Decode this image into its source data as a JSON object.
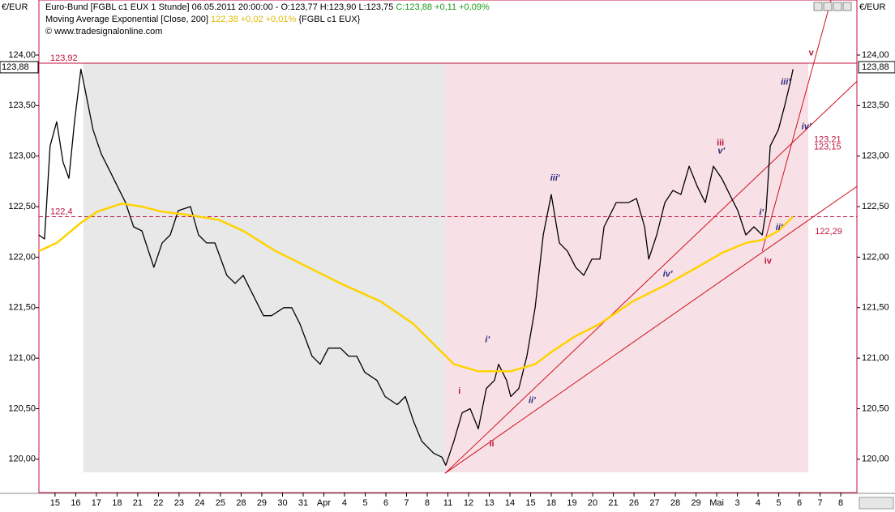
{
  "chart_data": {
    "type": "line",
    "header": {
      "line1": "Euro-Bund [FGBL c1 EUX  1 Stunde] 06.05.2011 20:00:00 - O:123,77 H:123,90 L:123,75",
      "line1_close": "C:123,88 +0,11 +0,09%",
      "line2": "Moving Average Exponential [Close, 200]",
      "line2_value": "122,38 +0,02 +0,01%",
      "line2_symbol": "{FGBL c1 EUX}",
      "line3": "© www.tradesignalonline.com"
    },
    "y_unit": "€/EUR",
    "last_price": {
      "value": 123.88,
      "label": "123,88"
    },
    "xlim": [
      -0.78,
      38.78
    ],
    "ylim": [
      119.67,
      124.545
    ],
    "xticks": [
      {
        "value": 0,
        "label": "15"
      },
      {
        "value": 1,
        "label": "16"
      },
      {
        "value": 2,
        "label": "17"
      },
      {
        "value": 3,
        "label": "18"
      },
      {
        "value": 4,
        "label": "21"
      },
      {
        "value": 5,
        "label": "22"
      },
      {
        "value": 6,
        "label": "23"
      },
      {
        "value": 7,
        "label": "24"
      },
      {
        "value": 8,
        "label": "25"
      },
      {
        "value": 9,
        "label": "28"
      },
      {
        "value": 10,
        "label": "29"
      },
      {
        "value": 11,
        "label": "30"
      },
      {
        "value": 12,
        "label": "31"
      },
      {
        "value": 13,
        "label": "Apr"
      },
      {
        "value": 14,
        "label": "4"
      },
      {
        "value": 15,
        "label": "5"
      },
      {
        "value": 16,
        "label": "6"
      },
      {
        "value": 17,
        "label": "7"
      },
      {
        "value": 18,
        "label": "8"
      },
      {
        "value": 19,
        "label": "11"
      },
      {
        "value": 20,
        "label": "12"
      },
      {
        "value": 21,
        "label": "13"
      },
      {
        "value": 22,
        "label": "14"
      },
      {
        "value": 23,
        "label": "15"
      },
      {
        "value": 24,
        "label": "18"
      },
      {
        "value": 25,
        "label": "19"
      },
      {
        "value": 26,
        "label": "20"
      },
      {
        "value": 27,
        "label": "21"
      },
      {
        "value": 28,
        "label": "26"
      },
      {
        "value": 29,
        "label": "27"
      },
      {
        "value": 30,
        "label": "28"
      },
      {
        "value": 31,
        "label": "29"
      },
      {
        "value": 32,
        "label": "Mai"
      },
      {
        "value": 33,
        "label": "3"
      },
      {
        "value": 34,
        "label": "4"
      },
      {
        "value": 35,
        "label": "5"
      },
      {
        "value": 36,
        "label": "6"
      },
      {
        "value": 37,
        "label": "7"
      },
      {
        "value": 38,
        "label": "8"
      }
    ],
    "yticks": [
      {
        "value": 120,
        "label": "120,00"
      },
      {
        "value": 120.5,
        "label": "120,50"
      },
      {
        "value": 121,
        "label": "121,00"
      },
      {
        "value": 121.5,
        "label": "121,50"
      },
      {
        "value": 122,
        "label": "122,00"
      },
      {
        "value": 122.5,
        "label": "122,50"
      },
      {
        "value": 123,
        "label": "123,00"
      },
      {
        "value": 123.5,
        "label": "123,50"
      },
      {
        "value": 124,
        "label": "124,00"
      }
    ],
    "bands": [
      {
        "x": [
          1.37,
          18.86
        ],
        "y": [
          119.87,
          123.92
        ],
        "color": "#e8e8e8"
      },
      {
        "x": [
          18.86,
          36.43
        ],
        "y": [
          119.87,
          123.92
        ],
        "color": "#f8e1e6"
      }
    ],
    "hlines": [
      {
        "value": 123.92,
        "label": "123,92",
        "style": "solid"
      },
      {
        "value": 122.4,
        "label": "122,4",
        "style": "dashed"
      }
    ],
    "trendlines": [
      {
        "x": [
          18.86,
          38.78
        ],
        "y": [
          119.86,
          122.7
        ]
      },
      {
        "x": [
          18.86,
          38.78
        ],
        "y": [
          119.86,
          123.74
        ]
      },
      {
        "x": [
          34.2,
          37.53
        ],
        "y": [
          122.06,
          124.545
        ]
      }
    ],
    "series": [
      {
        "color": "#000000",
        "x": [
          -0.78,
          -0.51,
          -0.24,
          0.08,
          0.39,
          0.67,
          0.94,
          1.25,
          1.45,
          1.84,
          2.24,
          2.63,
          3.02,
          3.41,
          3.8,
          4.2,
          4.78,
          5.18,
          5.57,
          5.96,
          6.55,
          6.94,
          7.33,
          7.73,
          8.31,
          8.71,
          9.1,
          9.69,
          10.08,
          10.47,
          11.06,
          11.45,
          11.84,
          12.43,
          12.82,
          13.22,
          13.8,
          14.2,
          14.59,
          14.98,
          15.57,
          15.96,
          16.55,
          16.94,
          17.33,
          17.73,
          18.31,
          18.71,
          18.9,
          19.29,
          19.69,
          20.08,
          20.47,
          20.86,
          21.25,
          21.45,
          21.84,
          22.04,
          22.43,
          22.82,
          23.22,
          23.61,
          24.0,
          24.39,
          24.78,
          25.18,
          25.57,
          25.96,
          26.35,
          26.55,
          27.14,
          27.73,
          28.12,
          28.51,
          28.71,
          29.1,
          29.49,
          29.88,
          30.27,
          30.67,
          31.06,
          31.45,
          31.84,
          32.24,
          32.63,
          33.02,
          33.41,
          33.8,
          34.2,
          34.39,
          34.59,
          34.98,
          35.29,
          35.57,
          35.69
        ],
        "values": [
          122.22,
          122.18,
          123.1,
          123.34,
          122.94,
          122.78,
          123.34,
          123.86,
          123.66,
          123.26,
          123.02,
          122.86,
          122.7,
          122.54,
          122.3,
          122.26,
          121.9,
          122.14,
          122.22,
          122.46,
          122.5,
          122.22,
          122.14,
          122.14,
          121.82,
          121.74,
          121.82,
          121.58,
          121.42,
          121.42,
          121.5,
          121.5,
          121.34,
          121.02,
          120.94,
          121.1,
          121.1,
          121.02,
          121.02,
          120.86,
          120.78,
          120.62,
          120.54,
          120.62,
          120.38,
          120.18,
          120.06,
          120.02,
          119.94,
          120.18,
          120.46,
          120.5,
          120.3,
          120.7,
          120.78,
          120.94,
          120.78,
          120.62,
          120.7,
          121.02,
          121.5,
          122.22,
          122.62,
          122.14,
          122.06,
          121.9,
          121.82,
          121.98,
          121.98,
          122.3,
          122.54,
          122.54,
          122.58,
          122.3,
          121.98,
          122.22,
          122.54,
          122.66,
          122.62,
          122.9,
          122.7,
          122.54,
          122.9,
          122.78,
          122.62,
          122.46,
          122.22,
          122.3,
          122.22,
          122.46,
          123.1,
          123.26,
          123.5,
          123.74,
          123.86
        ]
      },
      {
        "color": "#ffd200",
        "x": [
          -0.78,
          0.08,
          1.25,
          2.04,
          3.22,
          4.2,
          5.18,
          6.35,
          7.92,
          9.1,
          10.67,
          12.24,
          13.8,
          15.76,
          17.33,
          18.51,
          19.29,
          20.47,
          22.04,
          23.22,
          24.0,
          25.18,
          26.35,
          27.92,
          29.49,
          31.06,
          32.24,
          33.41,
          34.2,
          34.98,
          35.69
        ],
        "values": [
          122.06,
          122.14,
          122.34,
          122.45,
          122.53,
          122.5,
          122.45,
          122.42,
          122.37,
          122.26,
          122.06,
          121.9,
          121.74,
          121.56,
          121.34,
          121.1,
          120.94,
          120.87,
          120.87,
          120.94,
          121.06,
          121.22,
          121.34,
          121.56,
          121.72,
          121.9,
          122.04,
          122.14,
          122.17,
          122.26,
          122.4
        ]
      }
    ],
    "annotations": [
      {
        "text": "i",
        "x": 19.5,
        "y": 120.67,
        "color": "#c0143c"
      },
      {
        "text": "ii",
        "x": 21.0,
        "y": 120.15,
        "color": "#c0143c"
      },
      {
        "text": "i'",
        "x": 20.8,
        "y": 121.18,
        "color": "#2a2a80"
      },
      {
        "text": "ii'",
        "x": 22.9,
        "y": 120.58,
        "color": "#2a2a80"
      },
      {
        "text": "iii'",
        "x": 23.95,
        "y": 122.78,
        "color": "#2a2a80"
      },
      {
        "text": "iv'",
        "x": 29.4,
        "y": 121.83,
        "color": "#2a2a80"
      },
      {
        "text": "iii",
        "x": 32.0,
        "y": 123.13,
        "color": "#c0143c"
      },
      {
        "text": "v'",
        "x": 32.05,
        "y": 123.05,
        "color": "#2a2a80"
      },
      {
        "text": "i'",
        "x": 34.05,
        "y": 122.44,
        "color": "#2a2a80"
      },
      {
        "text": "iv",
        "x": 34.3,
        "y": 121.96,
        "color": "#c0143c"
      },
      {
        "text": "ii'",
        "x": 34.85,
        "y": 122.29,
        "color": "#2a2a80"
      },
      {
        "text": "iii'",
        "x": 35.1,
        "y": 123.73,
        "color": "#2a2a80"
      },
      {
        "text": "iv'",
        "x": 36.1,
        "y": 123.29,
        "color": "#2a2a80"
      },
      {
        "text": "v",
        "x": 36.45,
        "y": 124.02,
        "color": "#c0143c"
      },
      {
        "text": "123,21",
        "x": 36.7,
        "y": 123.16,
        "color": "#c0143c"
      },
      {
        "text": "123,15",
        "x": 36.7,
        "y": 123.09,
        "color": "#c0143c"
      },
      {
        "text": "122,29",
        "x": 36.75,
        "y": 122.25,
        "color": "#c0143c"
      }
    ]
  }
}
